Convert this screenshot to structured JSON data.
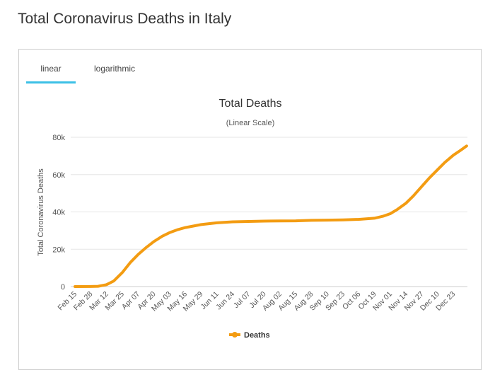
{
  "page_title": "Total Coronavirus Deaths in Italy",
  "tabs": [
    {
      "label": "linear",
      "active": true
    },
    {
      "label": "logarithmic",
      "active": false
    }
  ],
  "chart_data": {
    "type": "line",
    "title": "Total Deaths",
    "subtitle": "(Linear Scale)",
    "ylabel": "Total Coronavirus Deaths",
    "xlabel": "",
    "ylim": [
      0,
      80000
    ],
    "yticks": [
      0,
      20000,
      40000,
      60000,
      80000
    ],
    "ytick_labels": [
      "0",
      "20k",
      "40k",
      "60k",
      "80k"
    ],
    "xtick_labels": [
      "Feb 15",
      "Feb 28",
      "Mar 12",
      "Mar 25",
      "Apr 07",
      "Apr 20",
      "May 03",
      "May 16",
      "May 29",
      "Jun 11",
      "Jun 24",
      "Jul 07",
      "Jul 20",
      "Aug 02",
      "Aug 15",
      "Aug 28",
      "Sep 10",
      "Sep 23",
      "Oct 06",
      "Oct 19",
      "Nov 01",
      "Nov 14",
      "Nov 27",
      "Dec 10",
      "Dec 23"
    ],
    "grid": true,
    "legend": "bottom",
    "color": "#f39c12",
    "series": [
      {
        "name": "Deaths",
        "x": [
          "Feb 15",
          "Feb 28",
          "Mar 05",
          "Mar 12",
          "Mar 18",
          "Mar 25",
          "Apr 01",
          "Apr 07",
          "Apr 14",
          "Apr 20",
          "Apr 27",
          "May 03",
          "May 10",
          "May 16",
          "May 29",
          "Jun 11",
          "Jun 24",
          "Jul 07",
          "Jul 20",
          "Aug 02",
          "Aug 15",
          "Aug 28",
          "Sep 10",
          "Sep 23",
          "Oct 06",
          "Oct 19",
          "Oct 26",
          "Nov 01",
          "Nov 07",
          "Nov 14",
          "Nov 20",
          "Nov 27",
          "Dec 03",
          "Dec 10",
          "Dec 16",
          "Dec 23",
          "Dec 29",
          "Jan 03"
        ],
        "values": [
          0,
          21,
          148,
          1016,
          2978,
          7503,
          13155,
          17127,
          21067,
          24114,
          26977,
          28884,
          30560,
          31610,
          33229,
          34167,
          34675,
          34899,
          35058,
          35154,
          35234,
          35473,
          35587,
          35758,
          36030,
          36616,
          37700,
          39059,
          41394,
          44683,
          48569,
          53677,
          58038,
          62626,
          66537,
          70395,
          73029,
          75332
        ]
      }
    ]
  }
}
